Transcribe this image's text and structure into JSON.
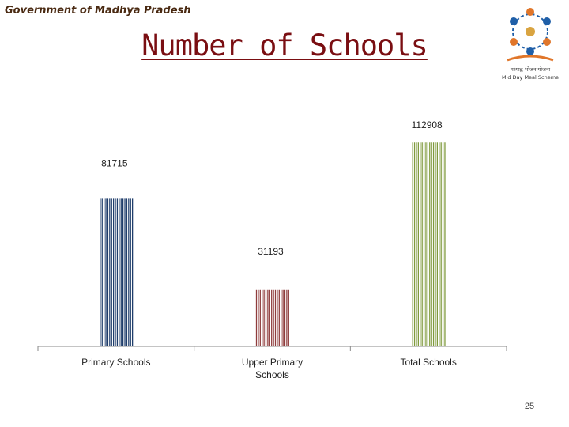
{
  "header": {
    "government": "Government of Madhya Pradesh"
  },
  "slide": {
    "title": "Number of Schools",
    "page_number": "25"
  },
  "logo": {
    "line1": "मध्याह्न भोजन योजना",
    "line2": "Mid Day Meal Scheme"
  },
  "colors": {
    "primary": "#1f3d6b",
    "upper_primary": "#8f3c3c",
    "total": "#7f9a3c",
    "title": "#7a0e12"
  },
  "chart_data": {
    "type": "bar",
    "title": "Number of Schools",
    "categories": [
      "Primary Schools",
      "Upper Primary Schools",
      "Total Schools"
    ],
    "category_lines": [
      [
        "Primary Schools"
      ],
      [
        "Upper Primary",
        "Schools"
      ],
      [
        "Total Schools"
      ]
    ],
    "values": [
      81715,
      31193,
      112908
    ],
    "value_labels": [
      "81715",
      "31193",
      "112908"
    ],
    "ylim": [
      0,
      120000
    ],
    "grid": false,
    "legend": "none"
  }
}
